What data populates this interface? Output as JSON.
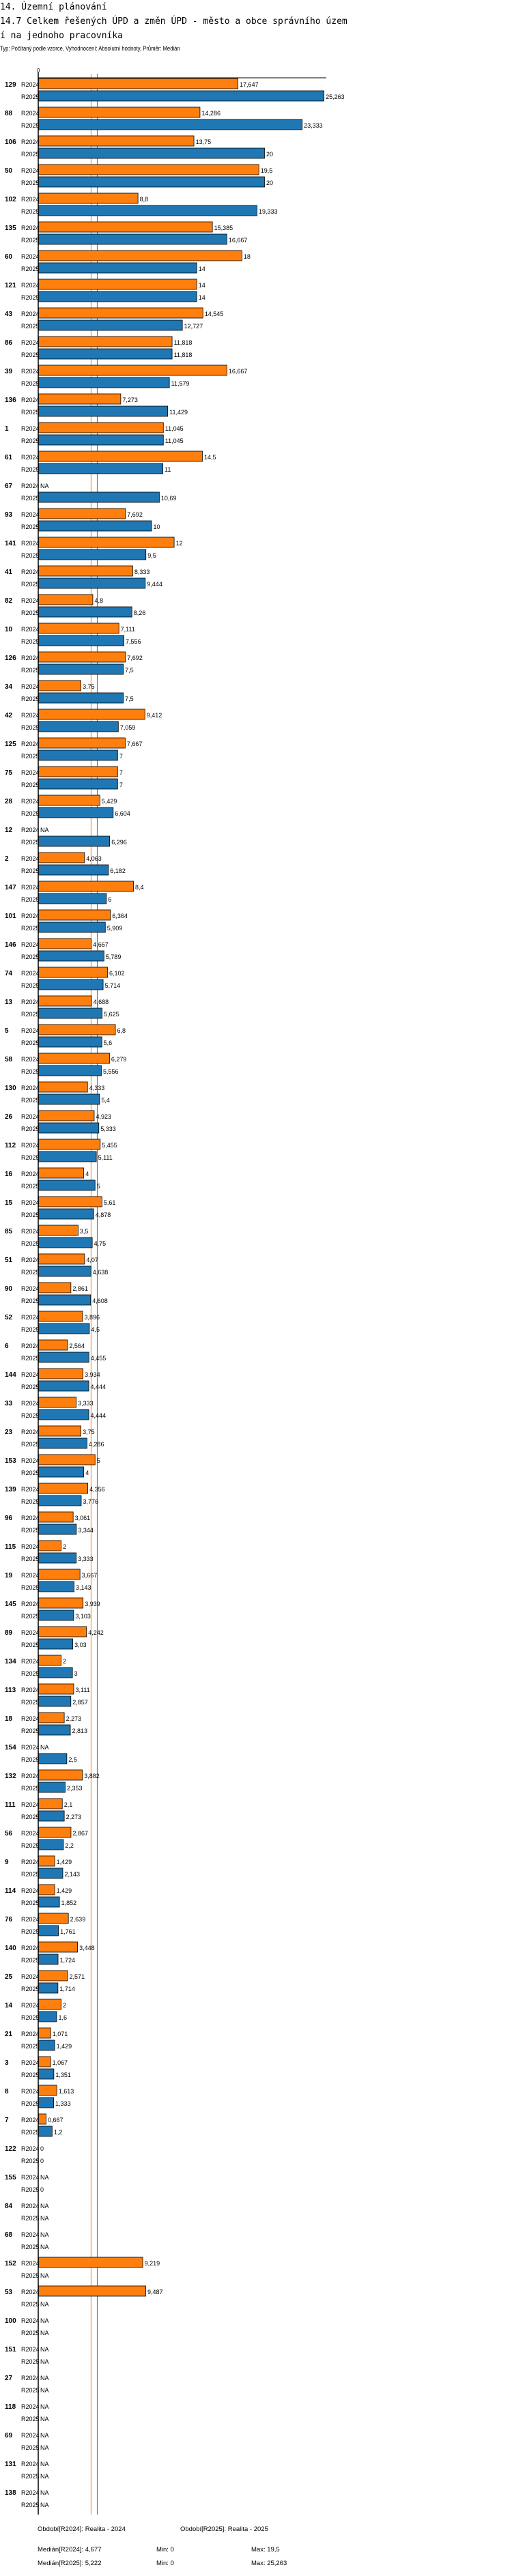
{
  "header": {
    "section": "14. Územní plánování",
    "title": "14.7 Celkem řešených ÚPD a změn ÚPD - město a obce správního území  na jednoho pracovníka",
    "subtitle": "Typ: Počítaný podle vzorce, Vyhodnocení: Absolutní hodnoty, Průměr: Medián"
  },
  "colors": {
    "R2024": "#ff7f0e",
    "R2025": "#1f77b4"
  },
  "chart_data": {
    "type": "bar",
    "orientation": "horizontal",
    "axis_zero_label": "0",
    "xlim": [
      0,
      25.263
    ],
    "na_label": "NA",
    "categories": [
      "129",
      "88",
      "106",
      "50",
      "102",
      "135",
      "60",
      "121",
      "43",
      "86",
      "39",
      "136",
      "1",
      "61",
      "67",
      "93",
      "141",
      "41",
      "82",
      "10",
      "126",
      "34",
      "42",
      "125",
      "75",
      "28",
      "12",
      "2",
      "147",
      "101",
      "146",
      "74",
      "13",
      "5",
      "58",
      "130",
      "26",
      "112",
      "16",
      "15",
      "85",
      "51",
      "90",
      "52",
      "6",
      "144",
      "33",
      "23",
      "153",
      "139",
      "96",
      "115",
      "19",
      "145",
      "89",
      "134",
      "113",
      "18",
      "154",
      "132",
      "111",
      "56",
      "9",
      "114",
      "76",
      "140",
      "25",
      "14",
      "21",
      "3",
      "8",
      "7",
      "122",
      "155",
      "84",
      "68",
      "152",
      "53",
      "100",
      "151",
      "27",
      "118",
      "69",
      "131",
      "138"
    ],
    "series": [
      {
        "name": "R2024",
        "values": [
          17.647,
          14.286,
          13.75,
          19.5,
          8.8,
          15.385,
          18,
          14,
          14.545,
          11.818,
          16.667,
          7.273,
          11.045,
          14.5,
          null,
          7.692,
          12,
          8.333,
          4.8,
          7.111,
          7.692,
          3.75,
          9.412,
          7.667,
          7,
          5.429,
          null,
          4.063,
          8.4,
          6.364,
          4.667,
          6.102,
          4.688,
          6.8,
          6.279,
          4.333,
          4.923,
          5.455,
          4,
          5.61,
          3.5,
          4.07,
          2.861,
          3.896,
          2.564,
          3.934,
          3.333,
          3.75,
          5,
          4.356,
          3.061,
          2,
          3.667,
          3.939,
          4.242,
          2,
          3.111,
          2.273,
          null,
          3.882,
          2.1,
          2.867,
          1.429,
          1.429,
          2.639,
          3.448,
          2.571,
          2,
          1.071,
          1.067,
          1.613,
          0.667,
          0,
          null,
          null,
          null,
          9.219,
          9.487,
          null,
          null,
          null,
          null,
          null,
          null,
          null
        ]
      },
      {
        "name": "R2025",
        "values": [
          25.263,
          23.333,
          20,
          20,
          19.333,
          16.667,
          14,
          14,
          12.727,
          11.818,
          11.579,
          11.429,
          11.045,
          11,
          10.69,
          10,
          9.5,
          9.444,
          8.26,
          7.556,
          7.5,
          7.5,
          7.059,
          7,
          7,
          6.604,
          6.296,
          6.182,
          6,
          5.909,
          5.789,
          5.714,
          5.625,
          5.6,
          5.556,
          5.4,
          5.333,
          5.111,
          5,
          4.878,
          4.75,
          4.638,
          4.608,
          4.5,
          4.455,
          4.444,
          4.444,
          4.286,
          4,
          3.776,
          3.344,
          3.333,
          3.143,
          3.103,
          3.03,
          3,
          2.857,
          2.813,
          2.5,
          2.353,
          2.273,
          2.2,
          2.143,
          1.852,
          1.761,
          1.724,
          1.714,
          1.6,
          1.429,
          1.351,
          1.333,
          1.2,
          0,
          0,
          null,
          null,
          null,
          null,
          null,
          null,
          null,
          null,
          null,
          null,
          null
        ]
      }
    ],
    "medians": {
      "R2024": 4.677,
      "R2025": 5.222
    }
  },
  "footer": {
    "legend_r2024": "Období[R2024]: Realita - 2024",
    "legend_r2025": "Období[R2025]: Realita - 2025",
    "median_r2024": "Medián[R2024]: 4,677",
    "min_r2024": "Min: 0",
    "max_r2024": "Max: 19,5",
    "median_r2025": "Medián[R2025]: 5,222",
    "min_r2025": "Min: 0",
    "max_r2025": "Max: 25,263"
  }
}
